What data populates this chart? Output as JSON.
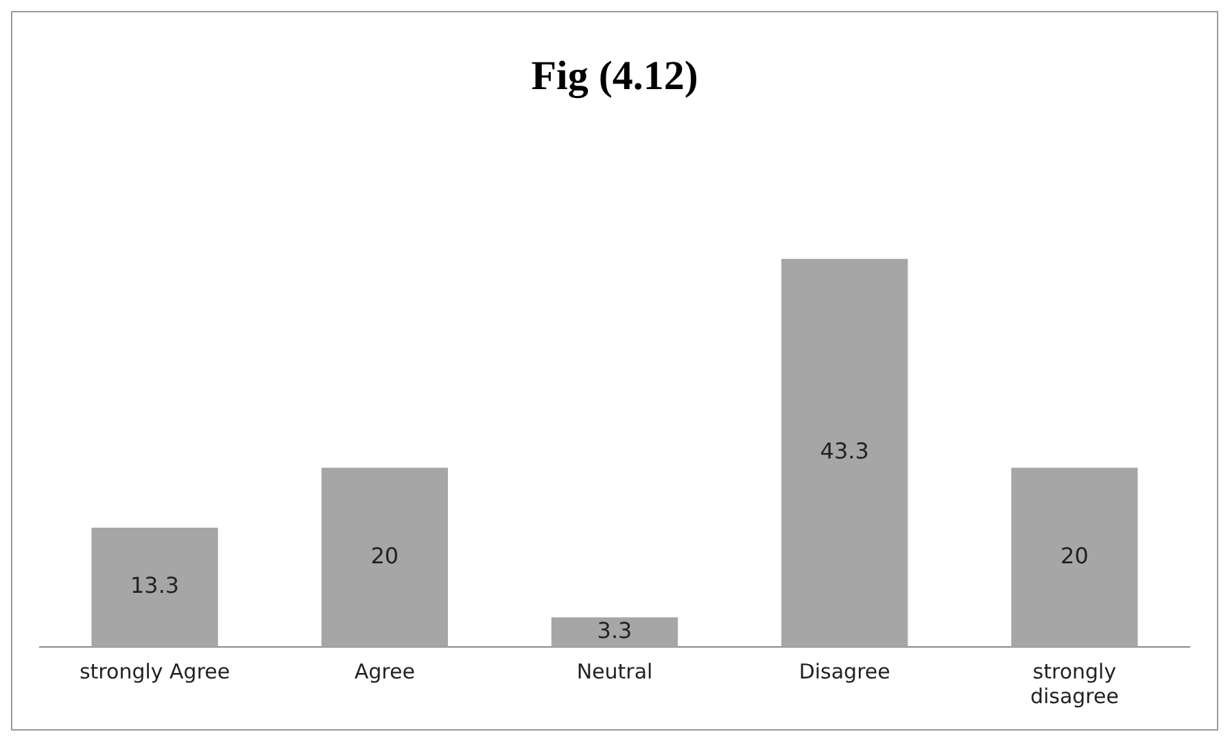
{
  "chart_data": {
    "type": "bar",
    "title": "Fig (4.12)",
    "categories": [
      "strongly Agree",
      "Agree",
      "Neutral",
      "Disagree",
      "strongly disagree"
    ],
    "values": [
      13.3,
      20,
      3.3,
      43.3,
      20
    ],
    "color": "#a6a6a6",
    "data_labels": true,
    "grid": false,
    "legend": false
  }
}
